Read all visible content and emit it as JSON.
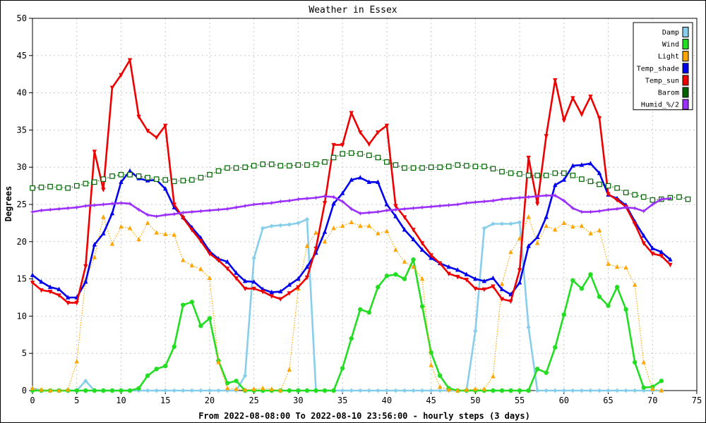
{
  "chart_data": {
    "type": "line",
    "title": "Weather in Essex",
    "xlabel": "From 2022-08-08:00 To 2022-08-10 23:56:00 - hourly steps (3 days)",
    "ylabel": "Degrees",
    "xlim": [
      0,
      75
    ],
    "ylim": [
      0,
      50
    ],
    "x_ticks": [
      0,
      5,
      10,
      15,
      20,
      25,
      30,
      35,
      40,
      45,
      50,
      55,
      60,
      65,
      70,
      75
    ],
    "y_ticks": [
      0,
      5,
      10,
      15,
      20,
      25,
      30,
      35,
      40,
      45,
      50
    ],
    "grid": true,
    "legend_position": "top-right",
    "series": [
      {
        "name": "Damp",
        "color": "#87ceeb",
        "style": "solid",
        "marker": "diamond",
        "values": [
          0.3,
          0,
          0,
          0,
          0,
          0,
          1.3,
          0,
          0,
          0,
          0,
          0,
          0,
          0,
          0,
          0,
          0,
          0,
          0,
          0,
          0,
          0,
          0,
          0,
          2,
          17.8,
          21.8,
          22.1,
          22.2,
          22.3,
          22.5,
          23,
          0,
          0,
          0,
          0,
          0,
          0,
          0,
          0,
          0,
          0,
          0,
          0,
          0,
          0,
          0,
          0,
          0,
          0,
          8,
          21.8,
          22.4,
          22.4,
          22.4,
          22.6,
          8.5,
          0,
          0,
          0,
          0,
          0,
          0,
          0,
          0,
          0,
          0,
          0,
          0,
          0,
          0,
          0
        ]
      },
      {
        "name": "Wind",
        "color": "#22dd22",
        "style": "solid",
        "marker": "circle",
        "values": [
          0,
          0,
          0,
          0,
          0,
          0,
          0,
          0,
          0,
          0,
          0,
          0,
          0.3,
          2,
          2.9,
          3.3,
          5.9,
          11.5,
          11.9,
          8.7,
          9.7,
          4,
          1,
          1.3,
          0,
          0,
          0,
          0,
          0,
          0,
          0,
          0,
          0,
          0,
          0,
          3,
          7,
          10.9,
          10.5,
          13.9,
          15.4,
          15.6,
          15,
          17.6,
          11.3,
          5.1,
          2,
          0.3,
          0,
          0,
          0,
          0,
          0,
          0,
          0,
          0,
          0,
          2.9,
          2.4,
          5.8,
          10.2,
          14.8,
          13.7,
          15.6,
          12.6,
          11.4,
          13.9,
          10.9,
          3.8,
          0.4,
          0.5,
          1.3
        ]
      },
      {
        "name": "Light",
        "color": "#ffa500",
        "style": "dotted",
        "marker": "triangle-up",
        "values": [
          0.3,
          0.1,
          0,
          0,
          0.1,
          3.9,
          14.8,
          17.9,
          23.3,
          19.7,
          22,
          21.8,
          20.3,
          22.5,
          21.2,
          21,
          20.9,
          17.5,
          16.8,
          16.3,
          15.1,
          3.8,
          0.3,
          0.2,
          0.1,
          0.2,
          0.3,
          0.2,
          0,
          2.8,
          13.7,
          19.4,
          21.2,
          20,
          21.8,
          22.1,
          22.6,
          22.1,
          22.1,
          21.1,
          21.4,
          18.9,
          17.3,
          16.6,
          15,
          3.4,
          0.5,
          0.1,
          0,
          0.1,
          0.2,
          0.2,
          1.9,
          14.3,
          18.6,
          20.4,
          23.3,
          19.8,
          22.1,
          21.6,
          22.5,
          22,
          22.1,
          21.1,
          21.5,
          17,
          16.6,
          16.5,
          14.2,
          3.8,
          0.2,
          0
        ]
      },
      {
        "name": "Temp_shade",
        "color": "#0000ee",
        "style": "solid",
        "marker": "triangle-up",
        "values": [
          15.5,
          14.6,
          13.9,
          13.6,
          12.5,
          12.5,
          14.6,
          19.6,
          21.1,
          23.8,
          28,
          29.5,
          28.5,
          28.2,
          28.3,
          27.1,
          24.6,
          23.3,
          21.9,
          20.5,
          18.7,
          17.7,
          17.3,
          15.8,
          14.7,
          14.6,
          13.6,
          13.2,
          13.3,
          14.2,
          15,
          16.6,
          18.5,
          21.3,
          25.1,
          26.5,
          28.3,
          28.6,
          28,
          28,
          25,
          23.4,
          21.6,
          20.3,
          18.9,
          17.8,
          17.1,
          16.6,
          16.2,
          15.6,
          15,
          14.7,
          15.1,
          13.6,
          12.9,
          14.5,
          19.4,
          20.6,
          23.3,
          27.6,
          28.3,
          30.2,
          30.3,
          30.5,
          29.2,
          26.3,
          25.8,
          24.9,
          22.7,
          20.8,
          19.1,
          18.6,
          17.6
        ]
      },
      {
        "name": "Temp_sun",
        "color": "#ee0000",
        "style": "solid",
        "marker": "triangle-down",
        "values": [
          14.5,
          13.5,
          13.3,
          12.8,
          11.8,
          11.8,
          16.7,
          32.1,
          27,
          40.7,
          42.4,
          44.4,
          36.8,
          34.9,
          34,
          35.6,
          25,
          23.2,
          21.6,
          20.1,
          18.4,
          17.5,
          16.4,
          15.1,
          13.7,
          13.7,
          13.3,
          12.7,
          12.3,
          13.1,
          13.9,
          15.2,
          19.1,
          25.2,
          33,
          33,
          37.3,
          34.7,
          33.1,
          34.7,
          35.6,
          24.8,
          23.3,
          21.6,
          19.8,
          18.2,
          17.1,
          15.7,
          15.3,
          14.9,
          13.7,
          13.6,
          14,
          12.3,
          12,
          16.2,
          31.3,
          25.1,
          34.2,
          41.7,
          36.3,
          39.3,
          37.1,
          39.5,
          36.6,
          26.4,
          25.6,
          24.7,
          22.4,
          19.8,
          18.4,
          18.1,
          16.9
        ]
      },
      {
        "name": "Barom",
        "color": "#006400",
        "style": "dotted",
        "marker": "square-open",
        "values": [
          27.2,
          27.3,
          27.4,
          27.3,
          27.2,
          27.5,
          27.8,
          28,
          28.4,
          28.8,
          29,
          29,
          28.8,
          28.6,
          28.4,
          28.3,
          28.1,
          28.2,
          28.3,
          28.6,
          29,
          29.5,
          29.9,
          29.9,
          30,
          30.2,
          30.4,
          30.4,
          30.2,
          30.2,
          30.3,
          30.3,
          30.4,
          30.7,
          31.3,
          31.8,
          31.9,
          31.8,
          31.6,
          31.3,
          30.7,
          30.3,
          29.9,
          29.9,
          29.9,
          30,
          30,
          30.1,
          30.3,
          30.2,
          30.1,
          30.1,
          29.8,
          29.4,
          29.2,
          29.1,
          28.9,
          28.9,
          28.9,
          29.2,
          29.2,
          28.9,
          28.4,
          28.1,
          27.7,
          27.5,
          27.2,
          26.6,
          26.3,
          26,
          25.6,
          25.7,
          25.9,
          26,
          25.7
        ]
      },
      {
        "name": "Humid_%/2",
        "color": "#9b30ff",
        "style": "solid",
        "marker": "star",
        "values": [
          24,
          24.2,
          24.3,
          24.4,
          24.5,
          24.6,
          24.8,
          24.9,
          25,
          25.1,
          25.2,
          25.1,
          24.3,
          23.6,
          23.4,
          23.6,
          23.7,
          23.9,
          24,
          24.1,
          24.2,
          24.3,
          24.4,
          24.6,
          24.8,
          25,
          25.1,
          25.2,
          25.4,
          25.5,
          25.7,
          25.8,
          25.9,
          26.1,
          26,
          25.4,
          24.4,
          23.8,
          23.9,
          24,
          24.2,
          24.3,
          24.4,
          24.5,
          24.6,
          24.7,
          24.8,
          24.9,
          25,
          25.2,
          25.3,
          25.4,
          25.5,
          25.7,
          25.8,
          25.9,
          26,
          26.1,
          26.2,
          26.2,
          25.5,
          24.5,
          24,
          24,
          24.1,
          24.3,
          24.4,
          24.6,
          24.5,
          24.1,
          25,
          25.7,
          25.8
        ]
      }
    ]
  }
}
